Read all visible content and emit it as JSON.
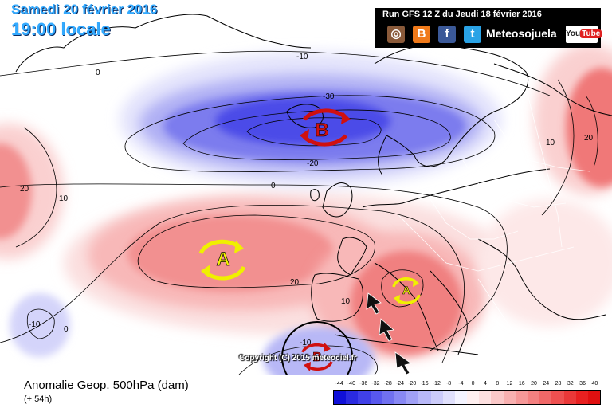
{
  "header": {
    "date": "Samedi 20 février 2016",
    "time": "19:00 locale"
  },
  "run_banner": "Run GFS 12 Z du Jeudi 18 février 2016",
  "social": {
    "icons": [
      "instagram-icon",
      "blogger-icon",
      "facebook-icon",
      "twitter-icon"
    ],
    "brand": "Meteosojuela",
    "youtube_you": "You",
    "youtube_tube": "Tube"
  },
  "footer": {
    "title": "Anomalie Geop. 500hPa (dam)",
    "subtitle": "(+ 54h)"
  },
  "copyright": "Copyright (C) 2015 meteociel.fr",
  "scale": {
    "labels": [
      "-44",
      "-40",
      "-36",
      "-32",
      "-28",
      "-24",
      "-20",
      "-16",
      "-12",
      "-8",
      "-4",
      "0",
      "4",
      "8",
      "12",
      "16",
      "20",
      "24",
      "28",
      "32",
      "36",
      "40"
    ],
    "colors": [
      "#1010d8",
      "#2a2ae0",
      "#4040e8",
      "#5858ee",
      "#7070f0",
      "#8888f4",
      "#a0a0f6",
      "#b8b8f8",
      "#ccccfa",
      "#e0e0fc",
      "#f4f4ff",
      "#fff0f0",
      "#fde0e0",
      "#fac8c8",
      "#f8b0b0",
      "#f69898",
      "#f48080",
      "#f06868",
      "#ee5050",
      "#ea3838",
      "#e82020",
      "#e01010"
    ]
  },
  "contour_labels": {
    "minus10_north": "-10",
    "minus30": "-30",
    "minus20": "-20",
    "zero_north": "0",
    "zero_mid": "0",
    "ten_east": "10",
    "twenty_east": "20",
    "twenty_west": "20",
    "ten_west": "10",
    "twenty_azores": "20",
    "ten_iberia": "10",
    "minus10_sw": "-10",
    "zero_sw": "0",
    "minus10_low": "-10"
  },
  "centers": {
    "low_north": "B",
    "high_atlantic": "A",
    "high_france": "A",
    "low_morocco": "B"
  },
  "colors": {
    "low_marker": "#d01010",
    "high_marker": "#f0f000",
    "title_blue": "#33aaff"
  }
}
